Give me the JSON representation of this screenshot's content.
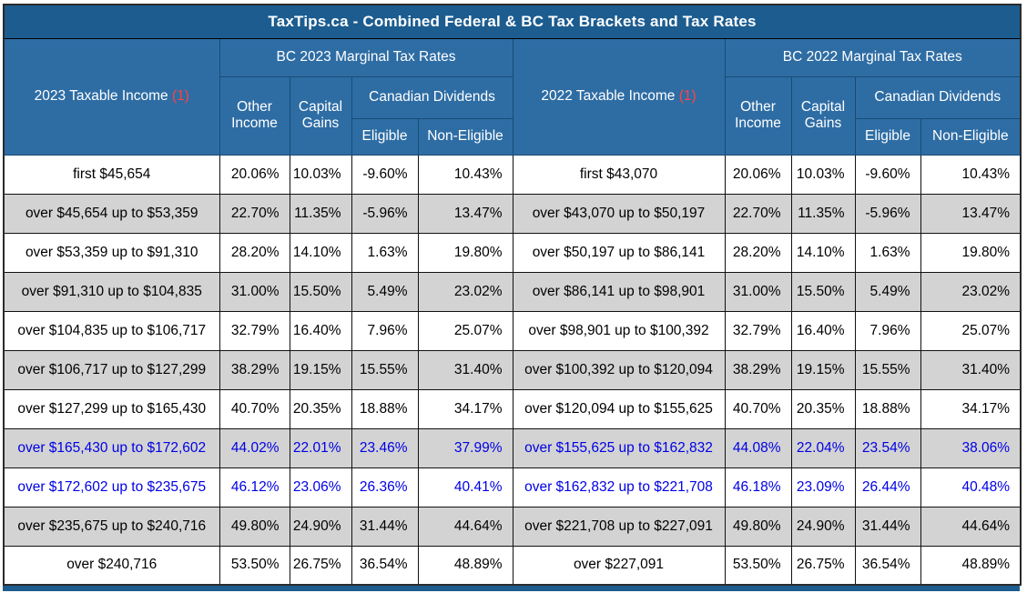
{
  "title": "TaxTips.ca - Combined Federal & BC Tax Brackets and Tax Rates",
  "header": {
    "col_2023_income": "2023 Taxable Income",
    "col_2022_income": "2022 Taxable Income",
    "footnote_marker": "(1)",
    "group_2023": "BC 2023 Marginal Tax Rates",
    "group_2022": "BC 2022 Marginal Tax Rates",
    "other_income": "Other Income",
    "capital_gains": "Capital Gains",
    "canadian_dividends": "Canadian Dividends",
    "eligible": "Eligible",
    "non_eligible": "Non-Eligible"
  },
  "rows": [
    {
      "highlight": false,
      "cells": [
        "first $45,654",
        "20.06%",
        "10.03%",
        "-9.60%",
        "10.43%",
        "first $43,070",
        "20.06%",
        "10.03%",
        "-9.60%",
        "10.43%"
      ]
    },
    {
      "highlight": false,
      "cells": [
        "over $45,654 up to $53,359",
        "22.70%",
        "11.35%",
        "-5.96%",
        "13.47%",
        "over $43,070 up to $50,197",
        "22.70%",
        "11.35%",
        "-5.96%",
        "13.47%"
      ]
    },
    {
      "highlight": false,
      "cells": [
        "over $53,359 up to $91,310",
        "28.20%",
        "14.10%",
        "1.63%",
        "19.80%",
        "over $50,197 up to $86,141",
        "28.20%",
        "14.10%",
        "1.63%",
        "19.80%"
      ]
    },
    {
      "highlight": false,
      "cells": [
        "over $91,310 up to $104,835",
        "31.00%",
        "15.50%",
        "5.49%",
        "23.02%",
        "over $86,141 up to $98,901",
        "31.00%",
        "15.50%",
        "5.49%",
        "23.02%"
      ]
    },
    {
      "highlight": false,
      "cells": [
        "over $104,835 up to $106,717",
        "32.79%",
        "16.40%",
        "7.96%",
        "25.07%",
        "over $98,901 up to $100,392",
        "32.79%",
        "16.40%",
        "7.96%",
        "25.07%"
      ]
    },
    {
      "highlight": false,
      "cells": [
        "over $106,717 up to $127,299",
        "38.29%",
        "19.15%",
        "15.55%",
        "31.40%",
        "over $100,392 up to $120,094",
        "38.29%",
        "19.15%",
        "15.55%",
        "31.40%"
      ]
    },
    {
      "highlight": false,
      "cells": [
        "over $127,299 up to $165,430",
        "40.70%",
        "20.35%",
        "18.88%",
        "34.17%",
        "over $120,094 up to $155,625",
        "40.70%",
        "20.35%",
        "18.88%",
        "34.17%"
      ]
    },
    {
      "highlight": true,
      "cells": [
        "over $165,430 up to $172,602",
        "44.02%",
        "22.01%",
        "23.46%",
        "37.99%",
        "over $155,625 up to $162,832",
        "44.08%",
        "22.04%",
        "23.54%",
        "38.06%"
      ]
    },
    {
      "highlight": true,
      "cells": [
        "over $172,602 up to $235,675",
        "46.12%",
        "23.06%",
        "26.36%",
        "40.41%",
        "over $162,832 up to $221,708",
        "46.18%",
        "23.09%",
        "26.44%",
        "40.48%"
      ]
    },
    {
      "highlight": false,
      "cells": [
        "over $235,675 up to $240,716",
        "49.80%",
        "24.90%",
        "31.44%",
        "44.64%",
        "over $221,708 up to $227,091",
        "49.80%",
        "24.90%",
        "31.44%",
        "44.64%"
      ]
    },
    {
      "highlight": false,
      "cells": [
        "over $240,716",
        "53.50%",
        "26.75%",
        "36.54%",
        "48.89%",
        "over $227,091",
        "53.50%",
        "26.75%",
        "36.54%",
        "48.89%"
      ]
    }
  ],
  "colors": {
    "title_bg": "#1c5c8f",
    "header_bg": "#2e6da4",
    "header_border": "#174b75",
    "row_alt_bg": "#d3d3d3",
    "highlight_text": "#0000e6",
    "footnote_red": "#ff4242"
  }
}
